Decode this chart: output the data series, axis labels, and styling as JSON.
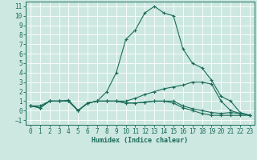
{
  "xlabel": "Humidex (Indice chaleur)",
  "xlim": [
    -0.5,
    23.5
  ],
  "ylim": [
    -1.5,
    11.5
  ],
  "xticks": [
    0,
    1,
    2,
    3,
    4,
    5,
    6,
    7,
    8,
    9,
    10,
    11,
    12,
    13,
    14,
    15,
    16,
    17,
    18,
    19,
    20,
    21,
    22,
    23
  ],
  "yticks": [
    -1,
    0,
    1,
    2,
    3,
    4,
    5,
    6,
    7,
    8,
    9,
    10,
    11
  ],
  "bg_color": "#cde8e0",
  "grid_color": "#b8d8cf",
  "line_color": "#1a6b5a",
  "tick_fontsize": 5.5,
  "xlabel_fontsize": 6.0,
  "lines": [
    [
      0.5,
      0.5,
      1.0,
      1.0,
      1.0,
      0.0,
      0.8,
      1.0,
      2.0,
      4.0,
      7.5,
      8.5,
      10.3,
      11.0,
      10.3,
      10.0,
      6.5,
      5.0,
      4.5,
      3.2,
      1.5,
      1.0,
      -0.2,
      -0.5
    ],
    [
      0.5,
      0.3,
      1.0,
      1.0,
      1.1,
      0.0,
      0.8,
      1.0,
      1.0,
      1.0,
      1.0,
      1.3,
      1.7,
      2.0,
      2.3,
      2.5,
      2.7,
      3.0,
      3.0,
      2.8,
      1.0,
      0.0,
      -0.3,
      -0.5
    ],
    [
      0.5,
      0.3,
      1.0,
      1.0,
      1.0,
      0.0,
      0.8,
      1.0,
      1.0,
      1.0,
      0.8,
      0.8,
      0.9,
      1.0,
      1.0,
      1.0,
      0.5,
      0.2,
      0.0,
      -0.2,
      -0.3,
      -0.2,
      -0.3,
      -0.5
    ],
    [
      0.5,
      0.3,
      1.0,
      1.0,
      1.0,
      0.0,
      0.8,
      1.0,
      1.0,
      1.0,
      0.8,
      0.8,
      0.9,
      1.0,
      1.0,
      0.8,
      0.3,
      0.0,
      -0.3,
      -0.5,
      -0.5,
      -0.5,
      -0.5,
      -0.5
    ]
  ]
}
